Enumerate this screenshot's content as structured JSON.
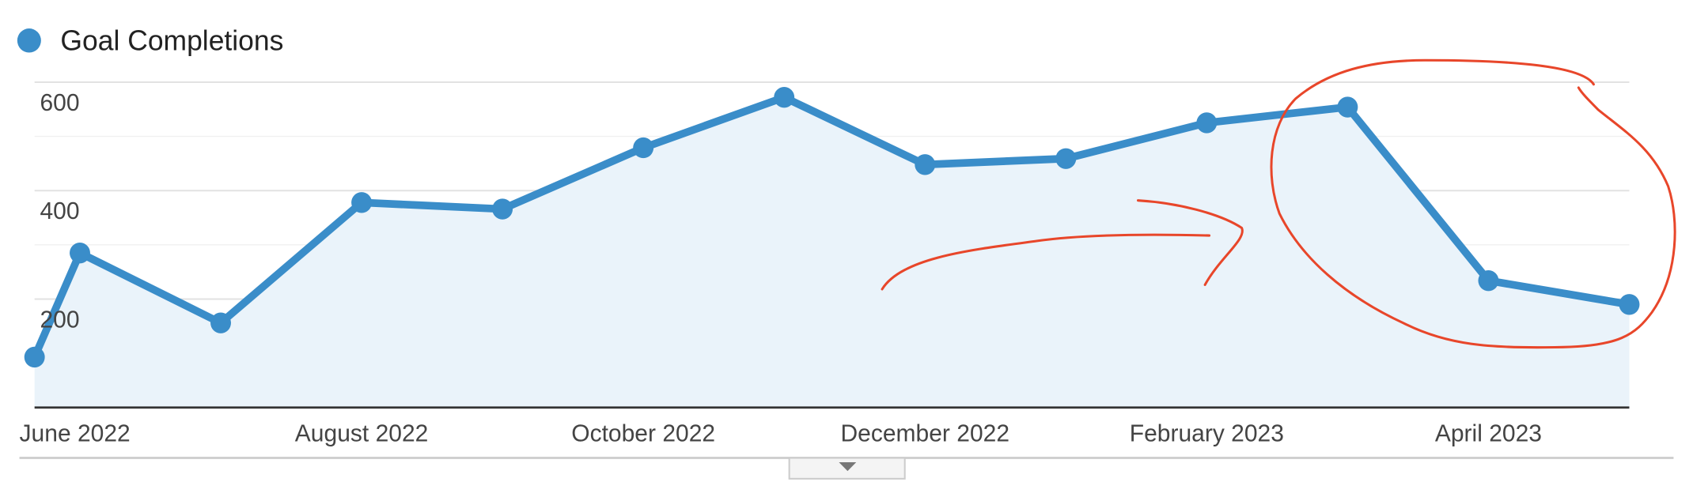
{
  "chart_data": {
    "type": "line",
    "categories": [
      null,
      "June 2022",
      null,
      "August 2022",
      null,
      "October 2022",
      null,
      "December 2022",
      null,
      "February 2023",
      null,
      "April 2023",
      null
    ],
    "series": [
      {
        "name": "Goal Completions",
        "color": "#3a8dc9",
        "values": [
          93,
          285,
          156,
          378,
          366,
          479,
          572,
          448,
          459,
          525,
          554,
          234,
          190
        ]
      }
    ],
    "ylim": [
      0,
      600
    ],
    "yticks": [
      200,
      400,
      600
    ],
    "y_minor_ticks": [
      100,
      300,
      500
    ],
    "grid": true,
    "area": true
  }
}
